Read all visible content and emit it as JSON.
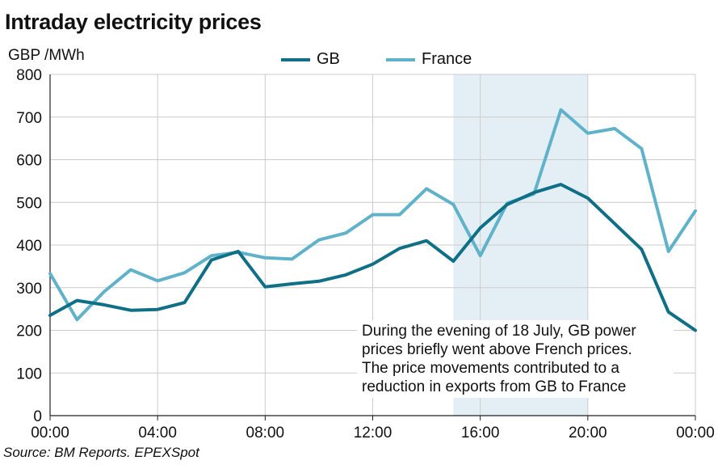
{
  "title": "Intraday electricity prices",
  "source": "Source: BM Reports. EPEXSpot",
  "annotation": [
    "During the evening of 18 July, GB power",
    "prices briefly went above French prices.",
    "The price movements contributed to a",
    "reduction in exports from GB to France"
  ],
  "colors": {
    "gb": "#0e6f86",
    "france": "#5fb2c9",
    "highlight": "#e3eff5",
    "grid": "#cccccc",
    "axis": "#222222"
  },
  "chart_data": {
    "type": "line",
    "ylabel": "GBP /MWh",
    "xlabel": "",
    "ylim": [
      0,
      800
    ],
    "yticks": [
      0,
      100,
      200,
      300,
      400,
      500,
      600,
      700,
      800
    ],
    "xlim": [
      0,
      24
    ],
    "xticks": [
      {
        "hour": 0,
        "label": "00:00"
      },
      {
        "hour": 4,
        "label": "04:00"
      },
      {
        "hour": 8,
        "label": "08:00"
      },
      {
        "hour": 12,
        "label": "12:00"
      },
      {
        "hour": 16,
        "label": "16:00"
      },
      {
        "hour": 20,
        "label": "20:00"
      },
      {
        "hour": 24,
        "label": "00:00"
      }
    ],
    "grid": true,
    "highlight_range": [
      15,
      20
    ],
    "x": [
      0,
      1,
      2,
      3,
      4,
      5,
      6,
      7,
      8,
      9,
      10,
      11,
      12,
      13,
      14,
      15,
      16,
      17,
      18,
      19,
      20,
      21,
      22,
      23,
      24
    ],
    "series": [
      {
        "name": "GB",
        "color": "#0e6f86",
        "values": [
          235,
          270,
          260,
          247,
          249,
          265,
          365,
          385,
          302,
          309,
          315,
          330,
          355,
          392,
          410,
          362,
          440,
          495,
          523,
          542,
          510,
          450,
          390,
          243,
          200
        ]
      },
      {
        "name": "France",
        "color": "#5fb2c9",
        "values": [
          333,
          225,
          290,
          342,
          316,
          335,
          375,
          383,
          370,
          367,
          412,
          428,
          471,
          471,
          532,
          495,
          375,
          498,
          520,
          717,
          662,
          673,
          626,
          385,
          480
        ]
      }
    ]
  }
}
